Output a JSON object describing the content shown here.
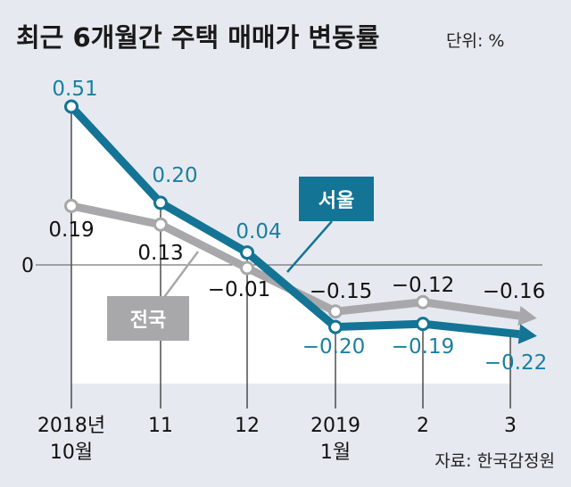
{
  "title": "최근 6개월간 주택 매매가 변동률",
  "unit_label": "단위: %",
  "source": "자료: 한국감정원",
  "colors": {
    "seoul": "#137496",
    "national": "#a8a8ab",
    "background": "#e6eaf0"
  },
  "chart_data": {
    "type": "line",
    "categories": [
      [
        "2018년",
        "10월"
      ],
      [
        "11"
      ],
      [
        "12"
      ],
      [
        "2019",
        "1월"
      ],
      [
        "2"
      ],
      [
        "3"
      ]
    ],
    "ylim": [
      -0.3,
      0.6
    ],
    "y_ticks": [
      "0"
    ],
    "grid": false,
    "series": [
      {
        "key": "seoul",
        "name": "서울",
        "values": [
          0.51,
          0.2,
          0.04,
          -0.2,
          -0.19,
          -0.22
        ],
        "labels": [
          "0.51",
          "0.20",
          "0.04",
          "−0.20",
          "−0.19",
          "−0.22"
        ]
      },
      {
        "key": "national",
        "name": "전국",
        "values": [
          0.19,
          0.13,
          -0.01,
          -0.15,
          -0.12,
          -0.16
        ],
        "labels": [
          "0.19",
          "0.13",
          "−0.01",
          "−0.15",
          "−0.12",
          "−0.16"
        ]
      }
    ]
  }
}
